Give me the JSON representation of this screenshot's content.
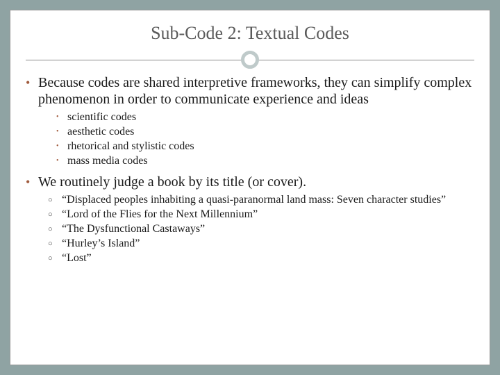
{
  "title": "Sub-Code 2: Textual Codes",
  "colors": {
    "slide_bg": "#8fa3a3",
    "card_bg": "#ffffff",
    "title_color": "#5a5a5a",
    "bullet_color": "#a05a3c",
    "ring_color": "#bfcaca",
    "text_color": "#1a1a1a"
  },
  "bullets": [
    {
      "text": "Because codes are shared interpretive frameworks, they can simplify complex phenomenon in order to communicate experience and ideas",
      "sub_style": "dot",
      "sub": [
        "scientific codes",
        "aesthetic codes",
        "rhetorical and stylistic codes",
        "mass media codes"
      ]
    },
    {
      "text": "We routinely judge a book by its title (or cover).",
      "sub_style": "circle",
      "sub": [
        "“Displaced peoples inhabiting a quasi-paranormal land mass: Seven character studies”",
        "“Lord of the Flies for the Next Millennium”",
        "“The Dysfunctional Castaways”",
        "“Hurley’s Island”",
        "“Lost”"
      ]
    }
  ]
}
